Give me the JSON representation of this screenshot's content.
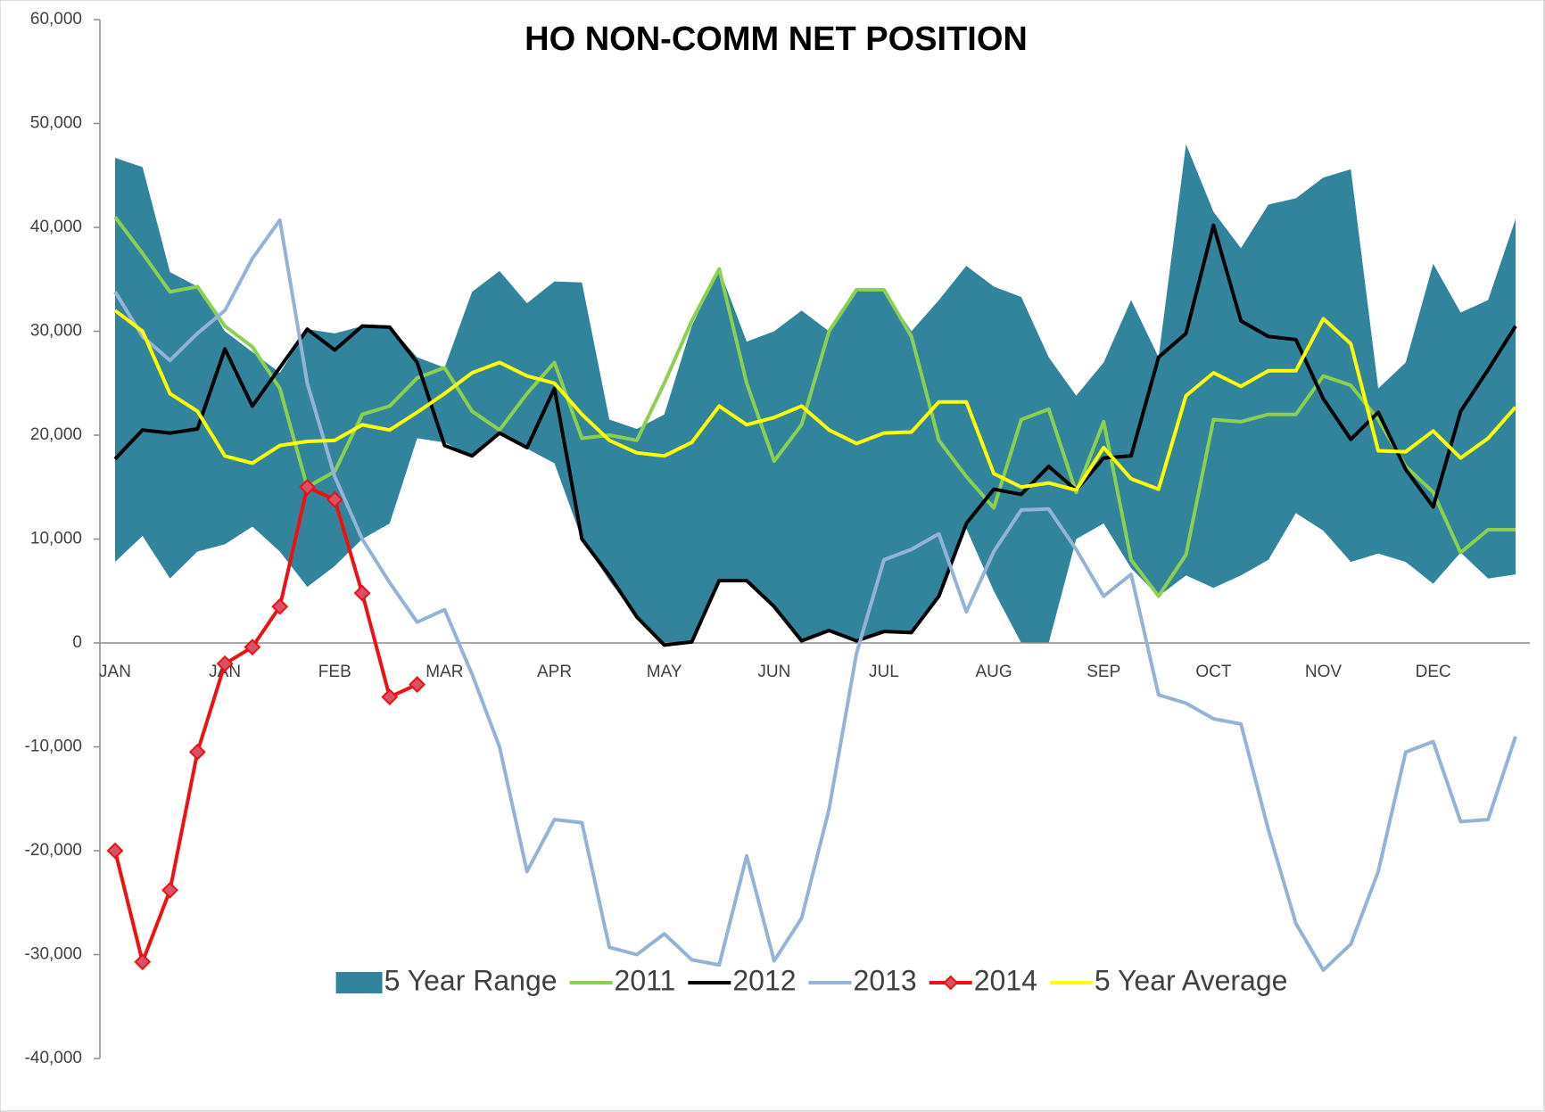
{
  "chart_data": {
    "type": "line",
    "title": "HO NON-COMM NET  POSITION",
    "categories": [
      "JAN",
      null,
      null,
      null,
      "JAN",
      null,
      null,
      null,
      "FEB",
      null,
      null,
      null,
      "MAR",
      null,
      null,
      null,
      "APR",
      null,
      null,
      null,
      "MAY",
      null,
      null,
      null,
      "JUN",
      null,
      null,
      null,
      "JUL",
      null,
      null,
      null,
      "AUG",
      null,
      null,
      null,
      "SEP",
      null,
      null,
      null,
      "OCT",
      null,
      null,
      null,
      "NOV",
      null,
      null,
      null,
      "DEC",
      null,
      null,
      null
    ],
    "ylim": [
      -40000,
      60000
    ],
    "yticks": [
      {
        "value": -40000,
        "label": "-40,000"
      },
      {
        "value": -30000,
        "label": "-30,000"
      },
      {
        "value": -20000,
        "label": "-20,000"
      },
      {
        "value": -10000,
        "label": "-10,000"
      },
      0,
      {
        "value": 10000,
        "label": "10,000"
      },
      {
        "value": 20000,
        "label": "20,000"
      },
      {
        "value": 30000,
        "label": "30,000"
      },
      {
        "value": 40000,
        "label": "40,000"
      },
      {
        "value": 50000,
        "label": "50,000"
      },
      {
        "value": 60000,
        "label": "60,000"
      }
    ],
    "series": [
      {
        "name": "5 Year Range",
        "type": "band",
        "color": "#31849b",
        "high": [
          46700,
          45800,
          35700,
          34300,
          30000,
          28000,
          26000,
          30200,
          29800,
          30500,
          30500,
          27500,
          26500,
          33800,
          35800,
          32700,
          34800,
          34700,
          21500,
          20600,
          22000,
          30500,
          36000,
          29000,
          30000,
          32000,
          30000,
          34000,
          34000,
          30000,
          33000,
          36300,
          34300,
          33300,
          27500,
          23800,
          27000,
          33000,
          27500,
          48000,
          41500,
          38000,
          42200,
          42800,
          44800,
          45600,
          24500,
          27000,
          36500,
          31800,
          33000,
          40800
        ],
        "low": [
          7800,
          10300,
          6200,
          8800,
          9500,
          11200,
          8800,
          5400,
          7400,
          10000,
          11500,
          19700,
          19300,
          18000,
          20000,
          18700,
          17300,
          10000,
          6000,
          2500,
          -300,
          0,
          6000,
          6000,
          3500,
          200,
          1200,
          400,
          1000,
          1000,
          4500,
          11000,
          5000,
          0,
          0,
          10000,
          11500,
          7200,
          4500,
          6500,
          5300,
          6500,
          8000,
          12500,
          10800,
          7800,
          8600,
          7800,
          5700,
          8700,
          6200,
          6600
        ]
      },
      {
        "name": "2011",
        "color": "#8cd050",
        "values": [
          41000,
          37500,
          33800,
          34300,
          30500,
          28500,
          24500,
          15000,
          16500,
          22000,
          22800,
          25500,
          26500,
          22300,
          20500,
          24000,
          27000,
          19700,
          20000,
          19500,
          25000,
          31000,
          36000,
          25000,
          17500,
          21000,
          30000,
          34000,
          34000,
          29500,
          19500,
          16000,
          13000,
          21500,
          22500,
          14500,
          21300,
          8000,
          4500,
          8500,
          21500,
          21300,
          22000,
          22000,
          25700,
          24800,
          21500,
          17000,
          14500,
          8700,
          10900,
          10900
        ]
      },
      {
        "name": "2012",
        "color": "#000000",
        "values": [
          17700,
          20500,
          20200,
          20600,
          28300,
          22800,
          26500,
          30200,
          28200,
          30500,
          30400,
          27000,
          19000,
          18000,
          20200,
          18800,
          24500,
          10000,
          6500,
          2500,
          -200,
          100,
          6000,
          6000,
          3500,
          200,
          1200,
          200,
          1100,
          1000,
          4500,
          11500,
          14800,
          14300,
          17000,
          14700,
          17800,
          18000,
          27500,
          29800,
          40200,
          31000,
          29500,
          29200,
          23500,
          19600,
          22200,
          16700,
          13100,
          22300,
          26300,
          30500
        ]
      },
      {
        "name": "2013",
        "color": "#95b3d7",
        "values": [
          33800,
          29500,
          27200,
          29800,
          32000,
          37000,
          40700,
          25000,
          16000,
          10000,
          5800,
          2000,
          3200,
          -3000,
          -10000,
          -22000,
          -17000,
          -17300,
          -29300,
          -30000,
          -28000,
          -30500,
          -31000,
          -20500,
          -30600,
          -26500,
          -16000,
          -1000,
          8000,
          9000,
          10500,
          3000,
          8800,
          12800,
          12900,
          9000,
          4500,
          6600,
          -5000,
          -5800,
          -7300,
          -7800,
          -18000,
          -27000,
          -31500,
          -29000,
          -22000,
          -10500,
          -9500,
          -17200,
          -17000,
          -9000
        ]
      },
      {
        "name": "2014",
        "color": "#ee1111",
        "marker": "diamond",
        "values": [
          -20000,
          -30700,
          -23800,
          -10500,
          -2000,
          -400,
          3500,
          15000,
          13800,
          4800,
          -5200,
          -4000,
          null,
          null,
          null,
          null,
          null,
          null,
          null,
          null,
          null,
          null,
          null,
          null,
          null,
          null,
          null,
          null,
          null,
          null,
          null,
          null,
          null,
          null,
          null,
          null,
          null,
          null,
          null,
          null,
          null,
          null,
          null,
          null,
          null,
          null,
          null,
          null,
          null,
          null,
          null,
          null
        ]
      },
      {
        "name": "5 Year Average",
        "color": "#ffff00",
        "values": [
          32000,
          30000,
          24000,
          22300,
          18000,
          17300,
          19000,
          19400,
          19500,
          21000,
          20500,
          22200,
          24000,
          26000,
          27000,
          25700,
          25000,
          22000,
          19500,
          18300,
          18000,
          19300,
          22800,
          21000,
          21700,
          22800,
          20500,
          19200,
          20200,
          20300,
          23200,
          23200,
          16300,
          15000,
          15400,
          14700,
          18800,
          15800,
          14800,
          23800,
          26000,
          24700,
          26200,
          26200,
          31200,
          28800,
          18500,
          18400,
          20400,
          17800,
          19700,
          22700
        ]
      }
    ]
  }
}
